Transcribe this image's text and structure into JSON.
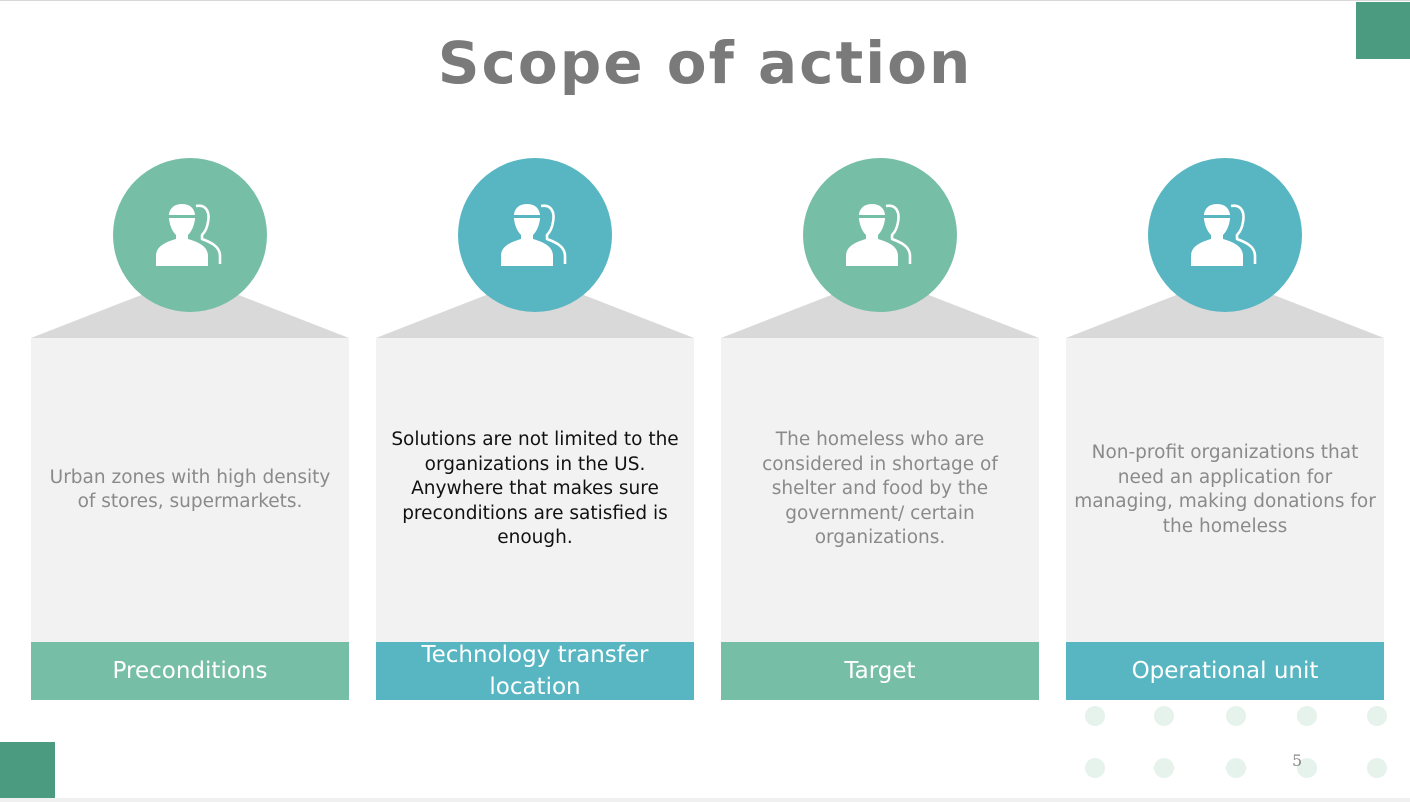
{
  "slide": {
    "title": "Scope of action",
    "page_number": "5"
  },
  "colors": {
    "green": "#76bea6",
    "teal": "#58b6c2",
    "dark_green": "#4a9b80",
    "card_bg": "#f2f2f2",
    "triangle": "#d9d9d9"
  },
  "cards": [
    {
      "icon": "users-icon",
      "color": "#76bea6",
      "text_lines": [
        "Urban zones with high density",
        "of stores, supermarkets."
      ],
      "label_lines": [
        "Preconditions"
      ]
    },
    {
      "icon": "users-icon",
      "color": "#58b6c2",
      "text_lines": [
        "Solutions are not limited to the",
        "organizations in the US.",
        "Anywhere that makes sure",
        "preconditions are satisfied is",
        "enough."
      ],
      "label_lines": [
        "Technology transfer",
        "location"
      ]
    },
    {
      "icon": "users-icon",
      "color": "#76bea6",
      "text_lines": [
        "The homeless who are",
        "considered in shortage of",
        "shelter and food by the",
        "government/ certain",
        "organizations."
      ],
      "label_lines": [
        "Target"
      ]
    },
    {
      "icon": "users-icon",
      "color": "#58b6c2",
      "text_lines": [
        "Non-profit organizations that",
        "need an application for",
        "managing, making donations for",
        "the homeless"
      ],
      "label_lines": [
        "Operational unit"
      ]
    }
  ]
}
